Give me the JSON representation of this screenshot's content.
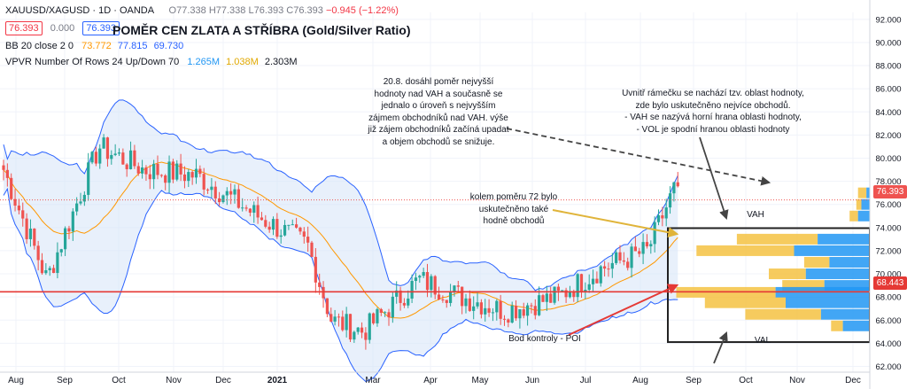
{
  "header": {
    "symbol": "XAUUSD/XAGUSD · 1D · OANDA",
    "ohlc": {
      "o": "O77.338",
      "h": "H77.338",
      "l": "L76.393",
      "c": "C76.393",
      "chg": "−0.945 (−1.22%)"
    },
    "bid": "76.393",
    "spread": "0.000",
    "ask": "76.393",
    "title": "POMĚR CEN ZLATA A STŘÍBRA (Gold/Silver Ratio)",
    "bb": {
      "label": "BB 20 close 2 0",
      "basis": "73.772",
      "upper": "77.815",
      "lower": "69.730"
    },
    "vpvr": {
      "label": "VPVR Number Of Rows 24 Up/Down 70",
      "up": "1.265M",
      "down": "1.038M",
      "total": "2.303M"
    }
  },
  "annotations": {
    "top_note": [
      "20.8. dosáhl poměr nejvyšší",
      "hodnoty nad VAH a současně se",
      "jednalo o úroveň s nejvyšším",
      "zájmem obchodníků nad VAH. výše",
      "již zájem obchodníků začíná upadat",
      "a objem obchodů se snižuje."
    ],
    "right_note": [
      "Uvnitř rámečku se nachází tzv. oblast hodnoty,",
      "zde bylo uskutečněno nejvíce obchodů.",
      "- VAH se nazývá horní hrana oblasti hodnoty,",
      "- VOL je spodní hranou oblasti hodnoty"
    ],
    "mid_note": [
      "kolem poměru 72 bylo",
      "uskutečněno také",
      "hodně obchodů"
    ],
    "poi": "Bod kontroly - POI",
    "vah": "VAH",
    "val": "VAL"
  },
  "colors": {
    "up": "#26a69a",
    "down": "#ef5350",
    "bb_band": "#2962ff",
    "bb_basis": "#ff9800",
    "band_fill": "#d6e4f7",
    "vp_up": "#2196f3",
    "vp_down": "#f5c242",
    "poi_line": "#e53935",
    "grid": "#f0f3fa"
  },
  "chart_data": {
    "type": "candlestick",
    "period": "1D",
    "x_ticks": [
      "Aug",
      "Sep",
      "Oct",
      "Nov",
      "Dec",
      "2021",
      "Mar",
      "Apr",
      "May",
      "Jun",
      "Jul",
      "Aug",
      "Sep",
      "Oct",
      "Nov",
      "Dec"
    ],
    "y_ticks": [
      "92.000",
      "90.000",
      "88.000",
      "86.000",
      "84.000",
      "82.000",
      "80.000",
      "78.000",
      "76.000",
      "74.000",
      "72.000",
      "70.000",
      "68.000",
      "66.000",
      "64.000",
      "62.000"
    ],
    "ylim": [
      61.5,
      92.6
    ],
    "last_price": "76.393",
    "poi_price": "68.443",
    "key_points": [
      {
        "date": "2020-08",
        "close": 79
      },
      {
        "date": "2020-08-20",
        "close": 69.5
      },
      {
        "date": "2020-09-20",
        "close": 81
      },
      {
        "date": "2020-10-15",
        "close": 79
      },
      {
        "date": "2020-11-15",
        "close": 78.5
      },
      {
        "date": "2020-12-20",
        "close": 75
      },
      {
        "date": "2021-01-20",
        "close": 72.5
      },
      {
        "date": "2021-02-05",
        "close": 66
      },
      {
        "date": "2021-02-25",
        "close": 65
      },
      {
        "date": "2021-03-25",
        "close": 69.5
      },
      {
        "date": "2021-04-20",
        "close": 68
      },
      {
        "date": "2021-05-15",
        "close": 66.8
      },
      {
        "date": "2021-06-15",
        "close": 68
      },
      {
        "date": "2021-07-10",
        "close": 70.5
      },
      {
        "date": "2021-08-05",
        "close": 72
      },
      {
        "date": "2021-08-20",
        "close": 77.3
      },
      {
        "date": "2021-08-23",
        "close": 76.393
      }
    ],
    "volume_profile_levels": [
      {
        "price": 77.0,
        "up": 4,
        "down": 10
      },
      {
        "price": 76.0,
        "up": 10,
        "down": 6
      },
      {
        "price": 75.0,
        "up": 14,
        "down": 10
      },
      {
        "price": 73.0,
        "up": 62,
        "down": 96
      },
      {
        "price": 72.0,
        "up": 90,
        "down": 116
      },
      {
        "price": 71.0,
        "up": 48,
        "down": 30
      },
      {
        "price": 70.0,
        "up": 76,
        "down": 44
      },
      {
        "price": 69.0,
        "up": 54,
        "down": 50
      },
      {
        "price": 68.4,
        "up": 112,
        "down": 118
      },
      {
        "price": 67.5,
        "up": 100,
        "down": 96
      },
      {
        "price": 66.5,
        "up": 58,
        "down": 90
      },
      {
        "price": 65.5,
        "up": 32,
        "down": 14
      }
    ]
  }
}
